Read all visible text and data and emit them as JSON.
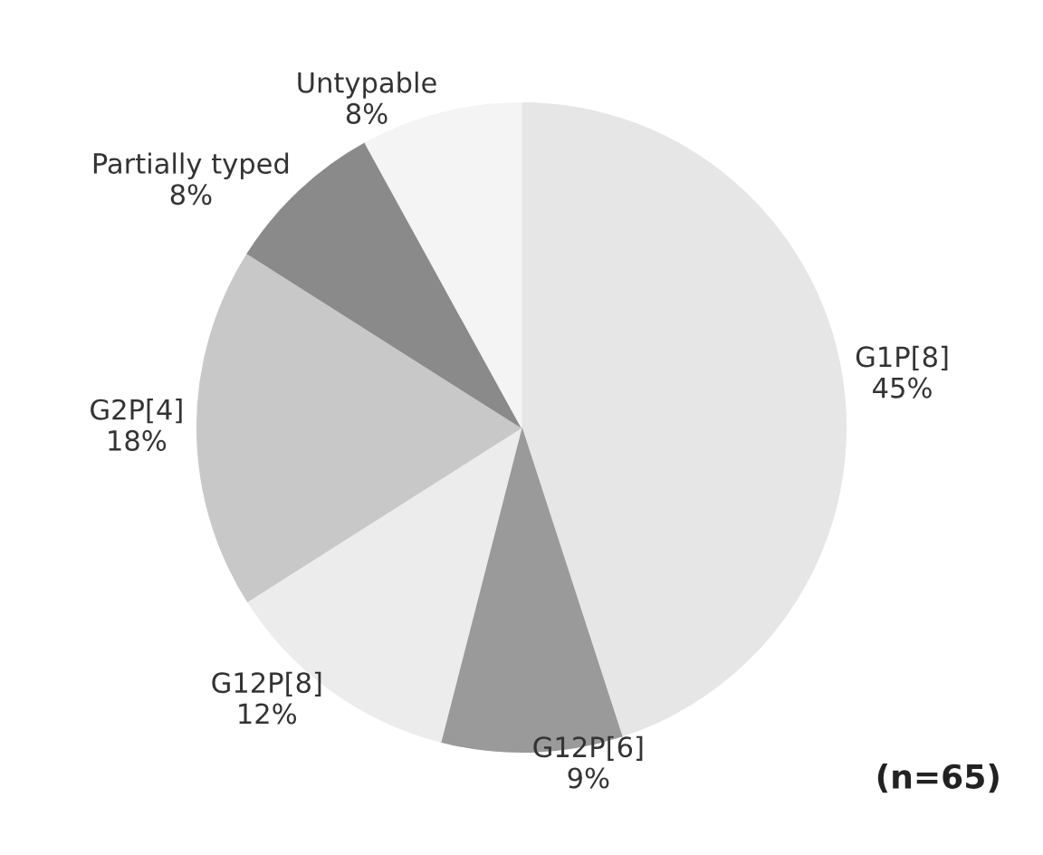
{
  "chart_data": {
    "type": "pie",
    "categories": [
      "G1P[8]",
      "G12P[6]",
      "G12P[8]",
      "G2P[4]",
      "Partially typed",
      "Untypable"
    ],
    "values": [
      45,
      9,
      12,
      18,
      8,
      8
    ],
    "value_labels": [
      "45%",
      "9%",
      "12%",
      "18%",
      "8%",
      "8%"
    ],
    "colors": [
      "#e6e6e6",
      "#9a9a9a",
      "#ececec",
      "#c8c8c8",
      "#8a8a8a",
      "#f4f4f4"
    ],
    "annotations": [
      "(n=65)"
    ]
  }
}
